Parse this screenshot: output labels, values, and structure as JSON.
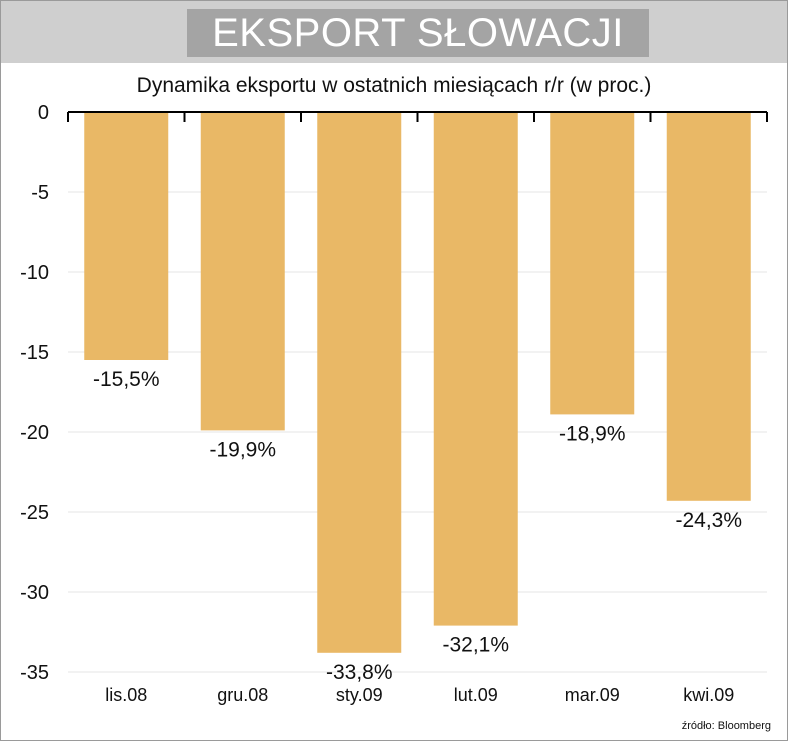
{
  "chart_data": {
    "type": "bar",
    "title": "EKSPORT SŁOWACJI",
    "subtitle": "Dynamika eksportu w ostatnich miesiącach r/r (w proc.)",
    "categories": [
      "lis.08",
      "gru.08",
      "sty.09",
      "lut.09",
      "mar.09",
      "kwi.09"
    ],
    "values": [
      -15.5,
      -19.9,
      -33.8,
      -32.1,
      -18.9,
      -24.3
    ],
    "data_labels": [
      "-15,5%",
      "-19,9%",
      "-33,8%",
      "-32,1%",
      "-18,9%",
      "-24,3%"
    ],
    "yticks": [
      "0",
      "-5",
      "-10",
      "-15",
      "-20",
      "-25",
      "-30",
      "-35"
    ],
    "ylim": [
      -35,
      0
    ],
    "grid": true,
    "bar_color": "#e9b866",
    "source": "źródło: Bloomberg"
  }
}
